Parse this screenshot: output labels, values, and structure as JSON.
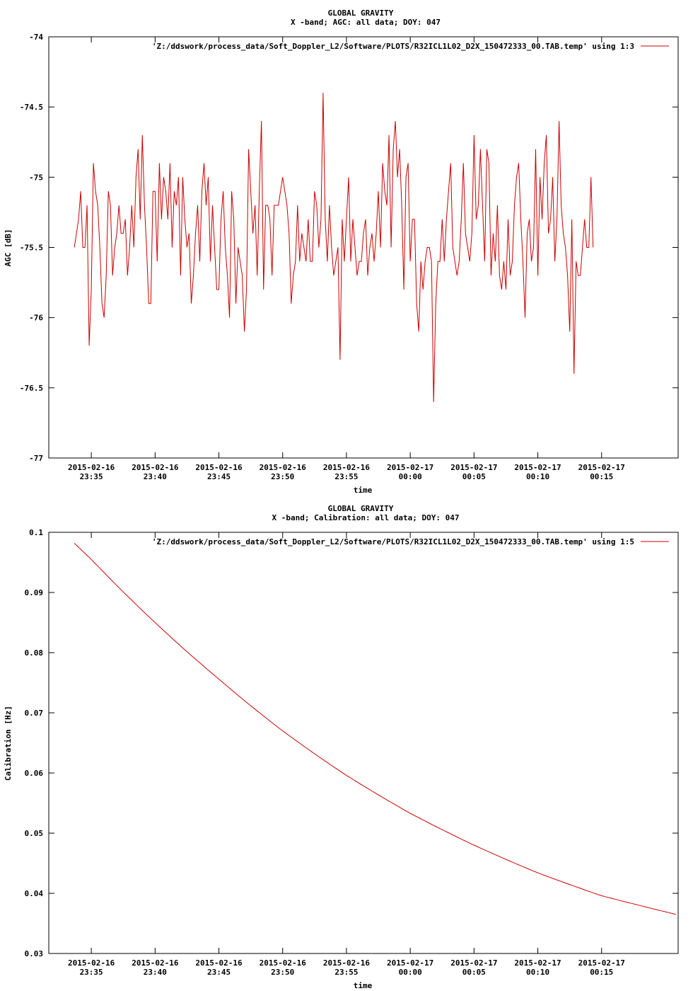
{
  "chart_data": [
    {
      "type": "line",
      "title": "GLOBAL GRAVITY",
      "subtitle": "X -band; AGC: all data; DOY: 047",
      "xlabel": "time",
      "ylabel": "AGC [dB]",
      "ylim": [
        -77,
        -74
      ],
      "yticks": [
        "-74",
        "-74.5",
        "-75",
        "-75.5",
        "-76",
        "-76.5",
        "-77"
      ],
      "xlim": [
        "2015-02-16 23:31:40",
        "2015-02-17 00:21:00"
      ],
      "xticks": [
        [
          "2015-02-16",
          "23:35"
        ],
        [
          "2015-02-16",
          "23:40"
        ],
        [
          "2015-02-16",
          "23:45"
        ],
        [
          "2015-02-16",
          "23:50"
        ],
        [
          "2015-02-16",
          "23:55"
        ],
        [
          "2015-02-17",
          "00:00"
        ],
        [
          "2015-02-17",
          "00:05"
        ],
        [
          "2015-02-17",
          "00:10"
        ],
        [
          "2015-02-17",
          "00:15"
        ]
      ],
      "grid": false,
      "legend_position": "top-right",
      "series": [
        {
          "name": "'Z:/ddswork/process_data/Soft_Doppler_L2/Software/PLOTS/R32ICL1L02_D2X_150472333_00.TAB.temp' using 1:3",
          "color": "#cc0000",
          "x_start": "2015-02-16 23:33:40",
          "x_step_seconds": 10,
          "values": [
            -75.5,
            -75.4,
            -75.3,
            -75.1,
            -75.5,
            -75.5,
            -75.2,
            -76.2,
            -75.8,
            -74.9,
            -75.1,
            -75.2,
            -75.5,
            -75.9,
            -76.0,
            -75.7,
            -75.1,
            -75.2,
            -75.7,
            -75.5,
            -75.4,
            -75.2,
            -75.4,
            -75.4,
            -75.3,
            -75.7,
            -75.5,
            -75.2,
            -75.5,
            -75.0,
            -74.8,
            -75.3,
            -74.7,
            -75.2,
            -75.5,
            -75.9,
            -75.9,
            -75.1,
            -75.1,
            -75.6,
            -74.9,
            -75.3,
            -75.0,
            -75.1,
            -75.3,
            -74.9,
            -75.5,
            -75.1,
            -75.2,
            -75.0,
            -75.7,
            -75.0,
            -75.3,
            -75.5,
            -75.4,
            -75.9,
            -75.7,
            -75.4,
            -75.2,
            -75.6,
            -75.1,
            -74.9,
            -75.2,
            -75.0,
            -75.6,
            -75.2,
            -75.5,
            -75.8,
            -75.8,
            -75.3,
            -75.1,
            -75.5,
            -75.7,
            -76.0,
            -75.1,
            -75.3,
            -75.9,
            -75.5,
            -75.6,
            -75.7,
            -76.1,
            -75.8,
            -74.8,
            -75.1,
            -75.4,
            -75.2,
            -75.7,
            -75.1,
            -74.6,
            -75.8,
            -75.2,
            -75.2,
            -75.3,
            -75.7,
            -75.2,
            -75.2,
            -75.2,
            -75.1,
            -75.0,
            -75.1,
            -75.2,
            -75.4,
            -75.9,
            -75.7,
            -75.6,
            -75.2,
            -75.6,
            -75.4,
            -75.5,
            -75.6,
            -75.3,
            -75.6,
            -75.6,
            -75.1,
            -75.2,
            -75.5,
            -75.3,
            -74.4,
            -75.3,
            -75.6,
            -75.2,
            -75.5,
            -75.7,
            -75.6,
            -75.5,
            -76.3,
            -75.3,
            -75.6,
            -75.3,
            -75.0,
            -75.6,
            -75.3,
            -75.5,
            -75.7,
            -75.6,
            -75.6,
            -75.4,
            -75.3,
            -75.7,
            -75.5,
            -75.4,
            -75.6,
            -75.4,
            -75.1,
            -75.5,
            -74.9,
            -75.1,
            -75.2,
            -74.7,
            -75.5,
            -74.8,
            -74.6,
            -75.0,
            -74.8,
            -75.2,
            -75.8,
            -75.0,
            -74.9,
            -75.6,
            -75.3,
            -75.3,
            -75.9,
            -76.1,
            -75.6,
            -75.8,
            -75.6,
            -75.5,
            -75.5,
            -75.6,
            -76.6,
            -75.9,
            -75.6,
            -75.6,
            -75.3,
            -75.6,
            -75.3,
            -75.1,
            -74.9,
            -75.5,
            -75.6,
            -75.7,
            -75.6,
            -75.3,
            -74.9,
            -75.4,
            -75.5,
            -75.6,
            -75.4,
            -74.7,
            -75.3,
            -75.2,
            -74.8,
            -75.2,
            -75.6,
            -74.8,
            -74.9,
            -75.7,
            -75.4,
            -75.6,
            -75.2,
            -75.7,
            -75.8,
            -75.6,
            -75.8,
            -75.3,
            -75.7,
            -75.6,
            -75.2,
            -75.0,
            -74.9,
            -75.3,
            -75.6,
            -76.0,
            -75.4,
            -75.3,
            -75.6,
            -75.5,
            -74.8,
            -75.7,
            -75.0,
            -75.3,
            -74.9,
            -74.7,
            -75.4,
            -75.3,
            -75.0,
            -75.6,
            -75.3,
            -74.6,
            -75.2,
            -75.4,
            -75.5,
            -75.7,
            -76.1,
            -75.3,
            -76.4,
            -75.6,
            -75.7,
            -75.7,
            -75.5,
            -75.3,
            -75.5,
            -75.5,
            -75.0,
            -75.5
          ]
        }
      ]
    },
    {
      "type": "line",
      "title": "GLOBAL GRAVITY",
      "subtitle": "X -band; Calibration: all data; DOY: 047",
      "xlabel": "time",
      "ylabel": "Calibration [Hz]",
      "ylim": [
        0.03,
        0.1
      ],
      "yticks": [
        "0.1",
        "0.09",
        "0.08",
        "0.07",
        "0.06",
        "0.05",
        "0.04",
        "0.03"
      ],
      "xlim": [
        "2015-02-16 23:31:40",
        "2015-02-17 00:21:00"
      ],
      "xticks": [
        [
          "2015-02-16",
          "23:35"
        ],
        [
          "2015-02-16",
          "23:40"
        ],
        [
          "2015-02-16",
          "23:45"
        ],
        [
          "2015-02-16",
          "23:50"
        ],
        [
          "2015-02-16",
          "23:55"
        ],
        [
          "2015-02-17",
          "00:00"
        ],
        [
          "2015-02-17",
          "00:05"
        ],
        [
          "2015-02-17",
          "00:10"
        ],
        [
          "2015-02-17",
          "00:15"
        ]
      ],
      "grid": false,
      "legend_position": "top-right",
      "series": [
        {
          "name": "'Z:/ddswork/process_data/Soft_Doppler_L2/Software/PLOTS/R32ICL1L02_D2X_150472333_00.TAB.temp' using 1:5",
          "color": "#cc0000",
          "x": [
            "2015-02-16 23:33:40",
            "2015-02-16 23:35:00",
            "2015-02-16 23:40:00",
            "2015-02-16 23:45:00",
            "2015-02-16 23:50:00",
            "2015-02-16 23:55:00",
            "2015-02-17 00:00:00",
            "2015-02-17 00:05:00",
            "2015-02-17 00:10:00",
            "2015-02-17 00:15:00",
            "2015-02-17 00:20:50"
          ],
          "values": [
            0.0982,
            0.0955,
            0.085,
            0.0756,
            0.067,
            0.0596,
            0.0533,
            0.048,
            0.0434,
            0.0396,
            0.0365
          ]
        }
      ]
    }
  ]
}
